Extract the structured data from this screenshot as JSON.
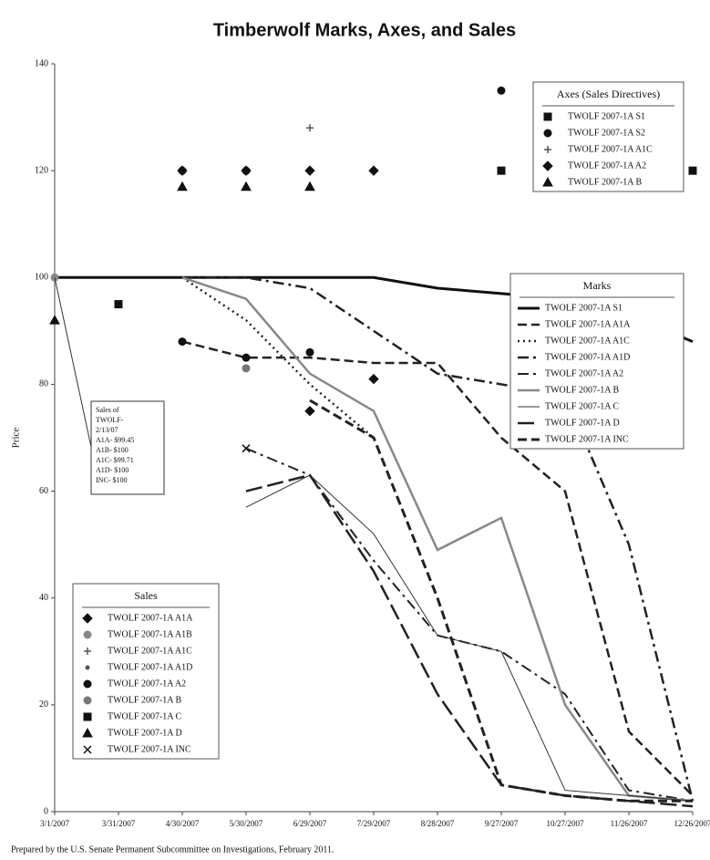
{
  "chart_data": {
    "type": "line",
    "title": "Timberwolf Marks, Axes, and Sales",
    "ylabel": "Price",
    "categories": [
      "3/1/2007",
      "3/31/2007",
      "4/30/2007",
      "5/30/2007",
      "6/29/2007",
      "7/29/2007",
      "8/28/2007",
      "9/27/2007",
      "10/27/2007",
      "11/26/2007",
      "12/26/2007"
    ],
    "ylim": [
      0,
      140
    ],
    "yticks": [
      0,
      20,
      40,
      60,
      80,
      100,
      120,
      140
    ],
    "legends": [
      {
        "title": "Marks",
        "kind": "line",
        "series": [
          {
            "name": "TWOLF 2007-1A S1",
            "color": "#111111",
            "style": "solid",
            "width": 3,
            "values": [
              100,
              100,
              100,
              100,
              100,
              100,
              98,
              97,
              96,
              93,
              88
            ]
          },
          {
            "name": "TWOLF 2007-1A A1A",
            "color": "#222222",
            "style": "dashed",
            "width": 2.5,
            "values": [
              null,
              null,
              88,
              85,
              85,
              84,
              84,
              70,
              60,
              15,
              3
            ]
          },
          {
            "name": "TWOLF 2007-1A A1C",
            "color": "#222222",
            "style": "dotted",
            "width": 2.5,
            "values": [
              null,
              null,
              100,
              92,
              80,
              70,
              null,
              null,
              null,
              null,
              null
            ]
          },
          {
            "name": "TWOLF 2007-1A A1D",
            "color": "#222222",
            "style": "dashdot",
            "width": 2.5,
            "values": [
              null,
              null,
              100,
              100,
              98,
              90,
              82,
              80,
              78,
              50,
              2
            ]
          },
          {
            "name": "TWOLF 2007-1A A2",
            "color": "#222222",
            "style": "dashdot",
            "width": 2,
            "values": [
              null,
              null,
              null,
              68,
              63,
              47,
              33,
              30,
              22,
              4,
              2
            ]
          },
          {
            "name": "TWOLF 2007-1A B",
            "color": "#888888",
            "style": "solid",
            "width": 2.5,
            "values": [
              null,
              null,
              100,
              96,
              82,
              75,
              49,
              55,
              20,
              3,
              2
            ]
          },
          {
            "name": "TWOLF 2007-1A C",
            "color": "#333333",
            "style": "solid",
            "width": 1,
            "values": [
              null,
              null,
              null,
              57,
              63,
              52,
              33,
              30,
              4,
              3,
              2
            ]
          },
          {
            "name": "TWOLF 2007-1A D",
            "color": "#222222",
            "style": "longdash",
            "width": 2.5,
            "values": [
              null,
              null,
              null,
              60,
              63,
              45,
              22,
              5,
              3,
              2,
              1
            ]
          },
          {
            "name": "TWOLF 2007-1A INC",
            "color": "#222222",
            "style": "dashed",
            "width": 3,
            "values": [
              null,
              null,
              null,
              null,
              77,
              70,
              40,
              5,
              3,
              2,
              2
            ]
          }
        ]
      },
      {
        "title": "Axes (Sales Directives)",
        "kind": "scatter",
        "series": [
          {
            "name": "TWOLF 2007-1A S1",
            "color": "#111111",
            "marker": "square",
            "values": [
              null,
              null,
              null,
              null,
              null,
              null,
              null,
              120,
              120,
              120,
              120
            ]
          },
          {
            "name": "TWOLF 2007-1A S2",
            "color": "#111111",
            "marker": "circle",
            "values": [
              null,
              null,
              120,
              120,
              null,
              null,
              null,
              135,
              null,
              null,
              null
            ]
          },
          {
            "name": "TWOLF 2007-1A A1C",
            "color": "#555555",
            "marker": "plus",
            "values": [
              null,
              null,
              null,
              null,
              128,
              null,
              null,
              null,
              null,
              null,
              null
            ]
          },
          {
            "name": "TWOLF 2007-1A A2",
            "color": "#111111",
            "marker": "diamond",
            "values": [
              null,
              null,
              120,
              120,
              120,
              120,
              null,
              null,
              null,
              null,
              null
            ]
          },
          {
            "name": "TWOLF 2007-1A B",
            "color": "#111111",
            "marker": "triangle",
            "values": [
              null,
              null,
              117,
              117,
              117,
              null,
              null,
              null,
              null,
              null,
              null
            ]
          }
        ]
      },
      {
        "title": "Sales",
        "kind": "scatter",
        "series": [
          {
            "name": "TWOLF 2007-1A A1A",
            "color": "#111111",
            "marker": "diamond",
            "values": [
              null,
              null,
              null,
              null,
              75,
              81,
              null,
              null,
              null,
              null,
              null
            ]
          },
          {
            "name": "TWOLF 2007-1A A1B",
            "color": "#888888",
            "marker": "circle",
            "values": [
              100,
              null,
              null,
              null,
              null,
              null,
              null,
              null,
              null,
              null,
              null
            ]
          },
          {
            "name": "TWOLF 2007-1A A1C",
            "color": "#555555",
            "marker": "plus",
            "values": [
              null,
              null,
              null,
              null,
              null,
              null,
              null,
              null,
              null,
              null,
              null
            ]
          },
          {
            "name": "TWOLF 2007-1A A1D",
            "color": "#555555",
            "marker": "dot",
            "values": [
              null,
              null,
              null,
              null,
              null,
              null,
              null,
              null,
              null,
              null,
              null
            ]
          },
          {
            "name": "TWOLF 2007-1A A2",
            "color": "#111111",
            "marker": "circle",
            "values": [
              null,
              null,
              88,
              85,
              86,
              null,
              null,
              null,
              null,
              null,
              null
            ]
          },
          {
            "name": "TWOLF 2007-1A B",
            "color": "#777777",
            "marker": "circle",
            "values": [
              null,
              null,
              null,
              83,
              null,
              null,
              null,
              null,
              null,
              null,
              null
            ]
          },
          {
            "name": "TWOLF 2007-1A C",
            "color": "#111111",
            "marker": "square",
            "values": [
              null,
              95,
              null,
              null,
              null,
              null,
              null,
              null,
              null,
              null,
              null
            ]
          },
          {
            "name": "TWOLF 2007-1A D",
            "color": "#111111",
            "marker": "triangle",
            "values": [
              92,
              null,
              null,
              null,
              null,
              null,
              null,
              null,
              null,
              null,
              null
            ]
          },
          {
            "name": "TWOLF 2007-1A INC",
            "color": "#111111",
            "marker": "cross",
            "values": [
              null,
              null,
              null,
              68,
              null,
              null,
              null,
              null,
              null,
              null,
              null
            ]
          }
        ]
      }
    ],
    "annotation": [
      "Sales of",
      "TWOLF-",
      "2/13/07",
      "A1A- $99.45",
      "A1B- $100",
      "A1C- $99.71",
      "A1D- $100",
      "INC- $100"
    ],
    "source": "Prepared by the U.S. Senate Permanent Subcommittee on Investigations, February 2011."
  }
}
